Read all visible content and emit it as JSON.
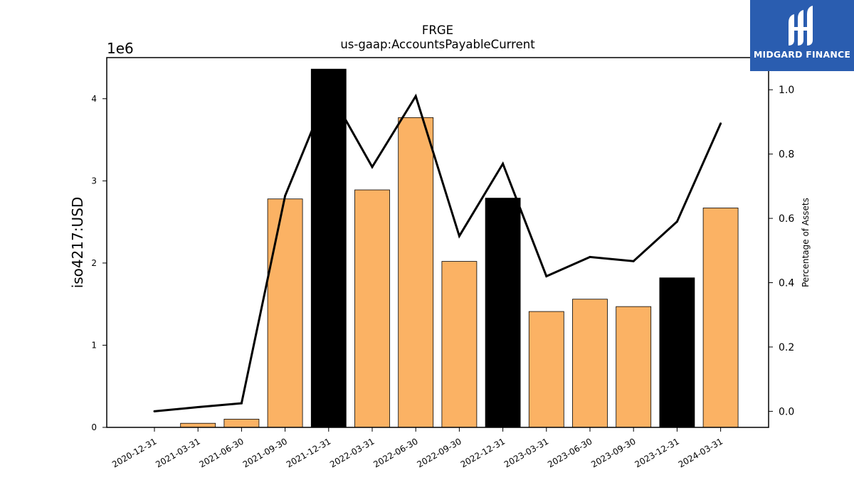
{
  "brand": {
    "name": "MIDGARD FINANCE",
    "logo_icon": "midgard-logo-icon",
    "color": "#2a5db0"
  },
  "chart_data": {
    "type": "bar",
    "title": "FRGE",
    "subtitle": "us-gaap:AccountsPayableCurrent",
    "ylabel": "iso4217:USD",
    "y_multiplier": "1e6",
    "y2label": "Percentage of Assets",
    "categories": [
      "2020-12-31",
      "2021-03-31",
      "2021-06-30",
      "2021-09-30",
      "2021-12-31",
      "2022-03-31",
      "2022-06-30",
      "2022-09-30",
      "2022-12-31",
      "2023-03-31",
      "2023-06-30",
      "2023-09-30",
      "2023-12-31",
      "2024-03-31"
    ],
    "series": [
      {
        "type": "bar",
        "values": [
          0,
          50000,
          100000,
          2780000,
          4360000,
          2890000,
          3770000,
          2020000,
          2790000,
          1410000,
          1560000,
          1470000,
          1820000,
          2670000
        ],
        "colors": [
          "#fbb264",
          "#fbb264",
          "#fbb264",
          "#fbb264",
          "#000000",
          "#fbb264",
          "#fbb264",
          "#fbb264",
          "#000000",
          "#fbb264",
          "#fbb264",
          "#fbb264",
          "#000000",
          "#fbb264"
        ]
      },
      {
        "type": "line",
        "axis": "right",
        "color": "#000000",
        "values": [
          0.0,
          0.013,
          0.025,
          0.67,
          1.0,
          0.76,
          0.98,
          0.545,
          0.77,
          0.42,
          0.48,
          0.467,
          0.59,
          0.895
        ]
      }
    ],
    "ylim": [
      0,
      4500000
    ],
    "yticks": [
      0,
      1,
      2,
      3,
      4
    ],
    "y2lim": [
      -0.05,
      1.1
    ],
    "y2ticks": [
      "0.0",
      "0.2",
      "0.4",
      "0.6",
      "0.8",
      "1.0"
    ],
    "grid": false
  }
}
